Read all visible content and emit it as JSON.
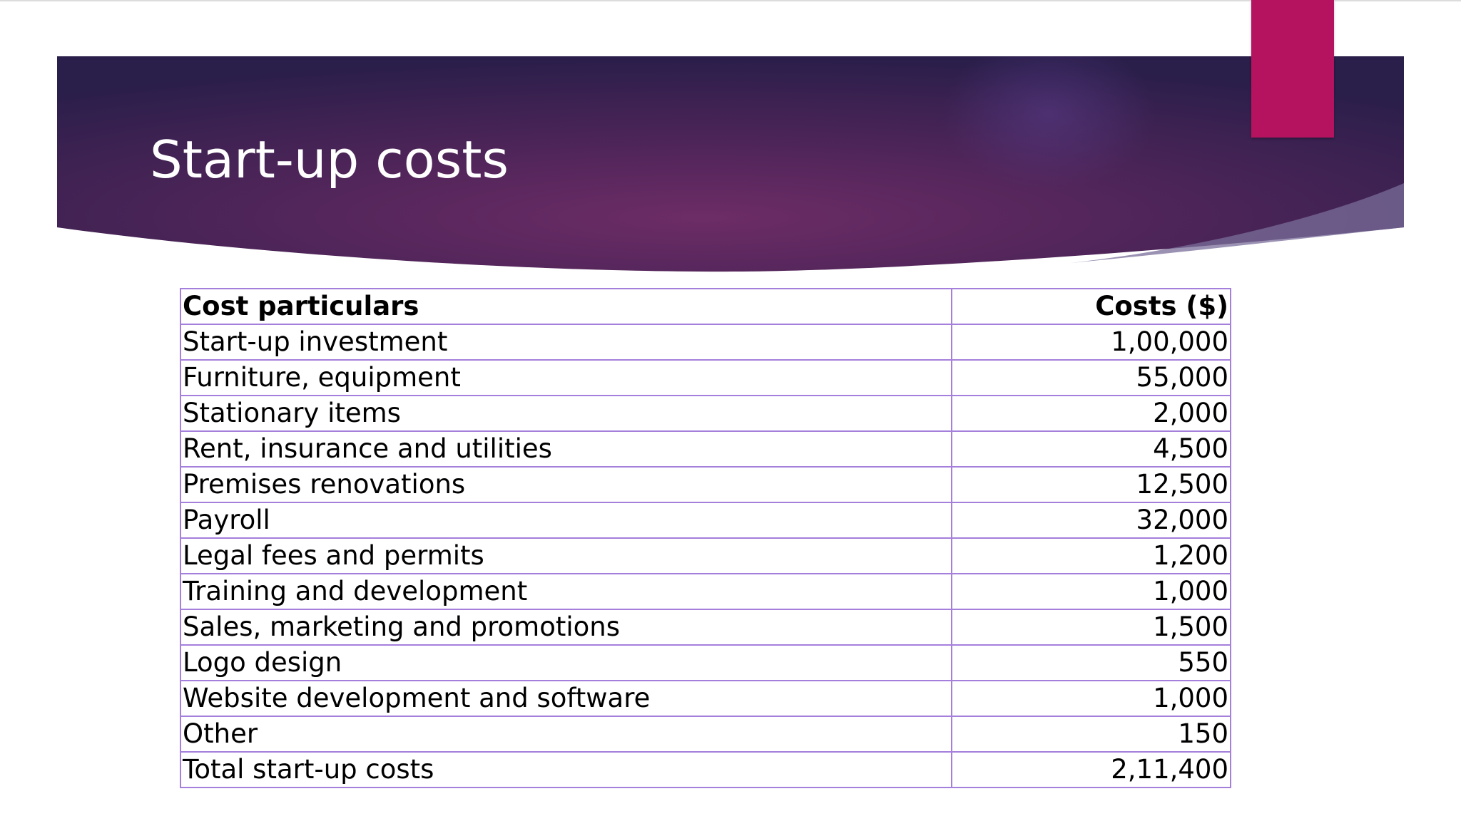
{
  "slide": {
    "title": "Start-up costs"
  },
  "colors": {
    "banner_dark": "#2a1e4a",
    "banner_mid": "#6a2a64",
    "accent_tab": "#b5135f",
    "table_border": "#a57fdc",
    "title_text": "#ffffff"
  },
  "table": {
    "headers": [
      "Cost particulars",
      "Costs ($)"
    ],
    "rows": [
      {
        "label": "Start-up investment",
        "cost": "1,00,000"
      },
      {
        "label": "Furniture, equipment",
        "cost": "55,000"
      },
      {
        "label": "Stationary items",
        "cost": "2,000"
      },
      {
        "label": "Rent, insurance and utilities",
        "cost": "4,500"
      },
      {
        "label": "Premises renovations",
        "cost": "12,500"
      },
      {
        "label": "Payroll",
        "cost": "32,000"
      },
      {
        "label": "Legal fees and permits",
        "cost": "1,200"
      },
      {
        "label": "Training and development",
        "cost": "1,000"
      },
      {
        "label": "Sales, marketing and promotions",
        "cost": "1,500"
      },
      {
        "label": "Logo design",
        "cost": "550"
      },
      {
        "label": "Website development and software",
        "cost": "1,000"
      },
      {
        "label": "Other",
        "cost": "150"
      },
      {
        "label": "Total start-up costs",
        "cost": "2,11,400"
      }
    ]
  }
}
